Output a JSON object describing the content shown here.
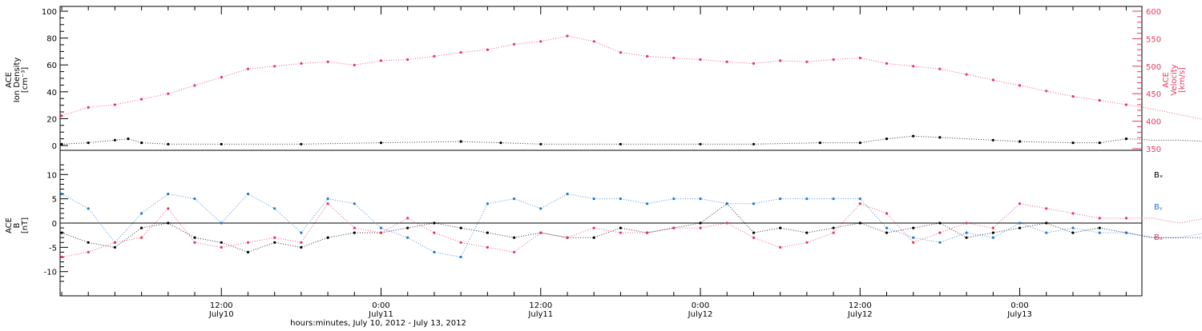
{
  "chart_data": [
    {
      "type": "scatter",
      "panel": "plasma",
      "ylabel_lines": [
        "ACE",
        "Ion Density",
        "[cm⁻³]"
      ],
      "ylim": [
        0,
        100
      ],
      "yticks": [
        "0",
        "20",
        "40",
        "60",
        "80",
        "100"
      ],
      "y2label_lines": [
        "ACE",
        "Velocity",
        "[km/s]"
      ],
      "y2lim": [
        350,
        600
      ],
      "y2ticks": [
        "350",
        "400",
        "450",
        "500",
        "550",
        "600"
      ],
      "series": [
        {
          "axis": "left",
          "color": "#000000",
          "x": [
            0,
            2,
            4,
            5,
            6,
            8,
            12,
            18,
            24,
            30,
            33,
            36,
            42,
            48,
            52,
            57,
            60,
            62,
            64,
            66,
            70,
            72,
            76,
            78,
            80,
            82,
            84,
            86,
            88
          ],
          "y": [
            1,
            2,
            4,
            5,
            2,
            1,
            1,
            1,
            2,
            3,
            2,
            1,
            1,
            1,
            1,
            2,
            2,
            5,
            7,
            6,
            4,
            3,
            2,
            2,
            5,
            4,
            4,
            3,
            3
          ]
        },
        {
          "axis": "right",
          "color": "#e8365e",
          "x": [
            0,
            2,
            4,
            6,
            8,
            10,
            12,
            14,
            16,
            18,
            20,
            22,
            24,
            26,
            28,
            30,
            32,
            34,
            36,
            38,
            40,
            42,
            44,
            46,
            48,
            50,
            52,
            54,
            56,
            58,
            60,
            62,
            64,
            66,
            68,
            70,
            72,
            74,
            76,
            78,
            80,
            82,
            84,
            86,
            88
          ],
          "y": [
            410,
            425,
            430,
            440,
            450,
            465,
            480,
            495,
            500,
            505,
            508,
            502,
            510,
            512,
            518,
            525,
            530,
            540,
            545,
            555,
            545,
            525,
            518,
            515,
            512,
            508,
            505,
            510,
            508,
            512,
            515,
            505,
            500,
            495,
            485,
            475,
            465,
            455,
            445,
            438,
            430,
            422,
            412,
            402,
            390
          ]
        }
      ]
    },
    {
      "type": "scatter",
      "panel": "field",
      "ylabel_lines": [
        "ACE",
        "B",
        "[nT]"
      ],
      "ylim": [
        -14,
        14
      ],
      "yticks": [
        "-10",
        "-5",
        "0",
        "5",
        "10"
      ],
      "legend": [
        "Bₓ",
        "Bᵧ",
        "Bₔ"
      ],
      "series": [
        {
          "name": "Bx",
          "color": "#000000",
          "x": [
            0,
            2,
            4,
            6,
            8,
            10,
            12,
            14,
            16,
            18,
            20,
            22,
            24,
            26,
            28,
            30,
            32,
            34,
            36,
            38,
            40,
            42,
            44,
            46,
            48,
            50,
            52,
            54,
            56,
            58,
            60,
            62,
            64,
            66,
            68,
            70,
            72,
            74,
            76,
            78,
            80,
            82,
            84,
            86,
            88
          ],
          "y": [
            -2,
            -4,
            -5,
            -1,
            0,
            -3,
            -4,
            -6,
            -4,
            -5,
            -3,
            -2,
            -2,
            -1,
            0,
            -1,
            -2,
            -3,
            -2,
            -3,
            -3,
            -1,
            -2,
            -1,
            0,
            4,
            -2,
            -1,
            -2,
            -1,
            0,
            -2,
            -1,
            0,
            -3,
            -2,
            -1,
            0,
            -2,
            -1,
            -2,
            -3,
            -3,
            -3,
            -4
          ]
        },
        {
          "name": "By",
          "color": "#1f78d1",
          "x": [
            0,
            2,
            4,
            6,
            8,
            10,
            12,
            14,
            16,
            18,
            20,
            22,
            24,
            26,
            28,
            30,
            32,
            34,
            36,
            38,
            40,
            42,
            44,
            46,
            48,
            50,
            52,
            54,
            56,
            58,
            60,
            62,
            64,
            66,
            68,
            70,
            72,
            74,
            76,
            78,
            80,
            82,
            84,
            86,
            88
          ],
          "y": [
            6,
            3,
            -4,
            2,
            6,
            5,
            0,
            6,
            3,
            -2,
            5,
            4,
            -1,
            -3,
            -6,
            -7,
            4,
            5,
            3,
            6,
            5,
            5,
            4,
            5,
            5,
            4,
            4,
            5,
            5,
            5,
            5,
            -1,
            -3,
            -4,
            -2,
            -3,
            0,
            -2,
            -1,
            -2,
            -2,
            -3,
            -3,
            -2,
            -1
          ]
        },
        {
          "name": "Bz",
          "color": "#e8365e",
          "x": [
            0,
            2,
            4,
            6,
            8,
            10,
            12,
            14,
            16,
            18,
            20,
            22,
            24,
            26,
            28,
            30,
            32,
            34,
            36,
            38,
            40,
            42,
            44,
            46,
            48,
            50,
            52,
            54,
            56,
            58,
            60,
            62,
            64,
            66,
            68,
            70,
            72,
            74,
            76,
            78,
            80,
            82,
            84,
            86,
            88
          ],
          "y": [
            -7,
            -6,
            -4,
            -3,
            3,
            -4,
            -5,
            -4,
            -3,
            -4,
            4,
            -1,
            -2,
            1,
            -2,
            -4,
            -5,
            -6,
            -2,
            -3,
            -1,
            -2,
            -2,
            -1,
            -1,
            0,
            -3,
            -5,
            -4,
            -2,
            4,
            2,
            -4,
            -2,
            0,
            -1,
            4,
            3,
            2,
            1,
            1,
            1,
            0,
            1,
            2
          ]
        }
      ]
    }
  ],
  "xaxis": {
    "range_hours": [
      0,
      81
    ],
    "tick_labels": [
      {
        "time": "12:00",
        "date": "July10"
      },
      {
        "time": "0:00",
        "date": "July11"
      },
      {
        "time": "12:00",
        "date": "July11"
      },
      {
        "time": "0:00",
        "date": "July12"
      },
      {
        "time": "12:00",
        "date": "July12"
      },
      {
        "time": "0:00",
        "date": "July13"
      }
    ],
    "title": "hours:minutes, July 10, 2012 - July 13, 2012"
  }
}
